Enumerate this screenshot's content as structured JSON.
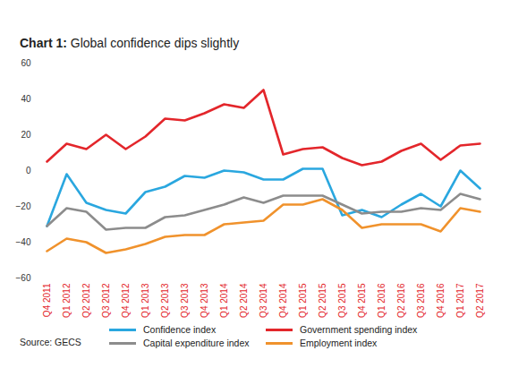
{
  "chart_data": {
    "type": "line",
    "title": "Chart 1: Global confidence dips slightly",
    "source": "Source: GECS",
    "categories": [
      "Q4 2011",
      "Q1 2012",
      "Q2 2012",
      "Q3 2012",
      "Q4 2012",
      "Q1 2013",
      "Q2 2013",
      "Q3 2013",
      "Q4 2013",
      "Q1 2014",
      "Q2 2014",
      "Q3 2014",
      "Q4 2014",
      "Q1 2015",
      "Q2 2015",
      "Q3 2015",
      "Q4 2015",
      "Q1 2016",
      "Q2 2016",
      "Q3 2016",
      "Q4 2016",
      "Q1 2017",
      "Q2 2017"
    ],
    "series": [
      {
        "name": "Confidence index",
        "color": "#2aa7df",
        "values": [
          -31,
          -2,
          -18,
          -22,
          -24,
          -12,
          -9,
          -3,
          -4,
          0,
          -1,
          -5,
          -5,
          1,
          1,
          -25,
          -22,
          -26,
          -19,
          -13,
          -20,
          0,
          -10
        ]
      },
      {
        "name": "Government spending index",
        "color": "#e3262b",
        "values": [
          5,
          15,
          12,
          20,
          12,
          19,
          29,
          28,
          32,
          37,
          35,
          45,
          9,
          12,
          13,
          7,
          3,
          5,
          11,
          15,
          6,
          14,
          15
        ]
      },
      {
        "name": "Capital expenditure index",
        "color": "#8c8c8c",
        "values": [
          -31,
          -21,
          -23,
          -33,
          -32,
          -32,
          -26,
          -25,
          -22,
          -19,
          -15,
          -18,
          -14,
          -14,
          -14,
          -19,
          -24,
          -23,
          -23,
          -21,
          -22,
          -13,
          -16
        ]
      },
      {
        "name": "Employment index",
        "color": "#f0922c",
        "values": [
          -45,
          -38,
          -40,
          -46,
          -44,
          -41,
          -37,
          -36,
          -36,
          -30,
          -29,
          -28,
          -19,
          -19,
          -16,
          -22,
          -32,
          -30,
          -30,
          -30,
          -34,
          -21,
          -23
        ]
      }
    ],
    "ylim": [
      -60,
      60
    ],
    "yticks": [
      -60,
      -40,
      -20,
      0,
      20,
      40,
      60
    ],
    "grid": false,
    "legend": "bottom"
  }
}
